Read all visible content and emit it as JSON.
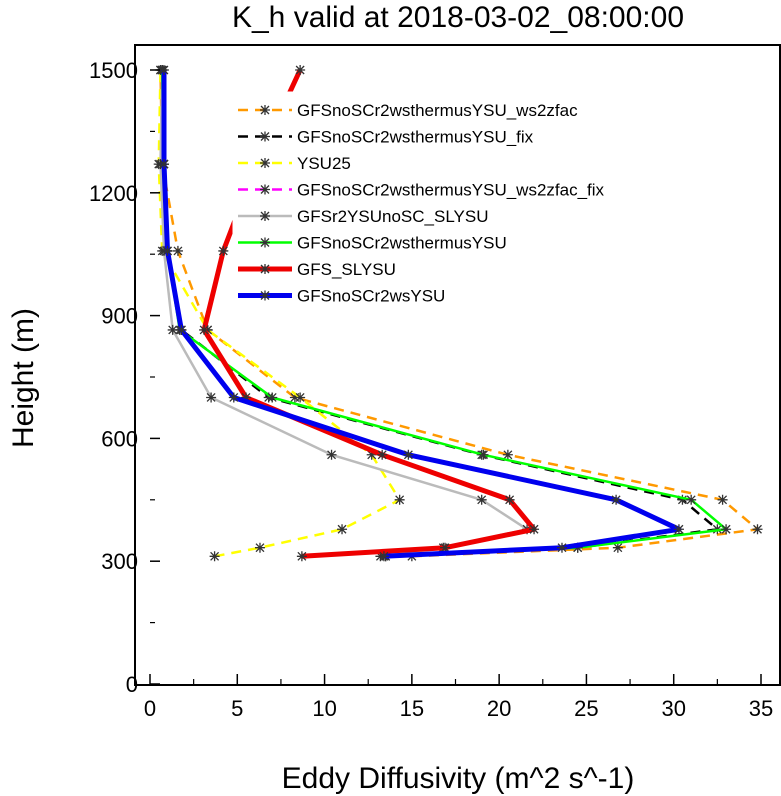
{
  "chart_data": {
    "type": "line",
    "title": "K_h valid at 2018-03-02_08:00:00",
    "xlabel": "Eddy Diffusivity (m^2 s^-1)",
    "ylabel": "Height (m)",
    "xlim": [
      0,
      35
    ],
    "ylim": [
      0,
      1500
    ],
    "xticks": [
      "0",
      "5",
      "10",
      "15",
      "20",
      "25",
      "30",
      "35"
    ],
    "yticks": [
      "0",
      "300",
      "600",
      "900",
      "1200",
      "1500"
    ],
    "grid": false,
    "legend_position": "top-right",
    "series": [
      {
        "name": "GFSnoSCr2wsthermusYSU_ws2zfac",
        "color": "#ff9900",
        "dash": "dashed",
        "width": "normal",
        "points": [
          [
            15.0,
            312
          ],
          [
            26.8,
            333
          ],
          [
            34.8,
            378
          ],
          [
            32.8,
            450
          ],
          [
            20.5,
            560
          ],
          [
            8.3,
            700
          ],
          [
            3.3,
            865
          ],
          [
            1.6,
            1058
          ],
          [
            0.7,
            1270
          ],
          [
            0.6,
            1500
          ]
        ]
      },
      {
        "name": "GFSnoSCr2wsthermusYSU_fix",
        "color": "#000000",
        "dash": "dashed",
        "width": "normal",
        "points": [
          [
            13.5,
            312
          ],
          [
            24.5,
            333
          ],
          [
            32.5,
            378
          ],
          [
            30.5,
            450
          ],
          [
            19.0,
            560
          ],
          [
            6.8,
            700
          ],
          [
            1.8,
            865
          ],
          [
            1.0,
            1058
          ],
          [
            0.8,
            1270
          ],
          [
            0.7,
            1500
          ]
        ]
      },
      {
        "name": "YSU25",
        "color": "#ffff00",
        "dash": "dashed",
        "width": "normal",
        "points": [
          [
            3.7,
            312
          ],
          [
            6.3,
            333
          ],
          [
            11.0,
            378
          ],
          [
            14.3,
            450
          ],
          [
            12.7,
            560
          ],
          [
            8.6,
            700
          ],
          [
            3.3,
            865
          ],
          [
            0.7,
            1058
          ],
          [
            0.5,
            1270
          ],
          [
            0.6,
            1500
          ]
        ]
      },
      {
        "name": "GFSnoSCr2wsthermusYSU_ws2zfac_fix",
        "color": "#ff00ff",
        "dash": "dashed",
        "width": "normal",
        "points": []
      },
      {
        "name": "GFSr2YSUnoSC_SLYSU",
        "color": "#bbbbbb",
        "dash": "solid",
        "width": "normal",
        "points": [
          [
            13.2,
            312
          ],
          [
            16.8,
            333
          ],
          [
            21.6,
            378
          ],
          [
            19.0,
            450
          ],
          [
            10.4,
            560
          ],
          [
            3.5,
            700
          ],
          [
            1.3,
            865
          ],
          [
            0.8,
            1058
          ],
          [
            0.6,
            1270
          ],
          [
            0.7,
            1500
          ]
        ]
      },
      {
        "name": "GFSnoSCr2wsthermusYSU",
        "color": "#00ff00",
        "dash": "solid",
        "width": "normal",
        "points": [
          [
            13.5,
            312
          ],
          [
            24.5,
            333
          ],
          [
            33.0,
            378
          ],
          [
            31.0,
            450
          ],
          [
            19.1,
            560
          ],
          [
            7.0,
            700
          ],
          [
            1.7,
            865
          ],
          [
            1.0,
            1058
          ],
          [
            0.8,
            1270
          ],
          [
            0.7,
            1500
          ]
        ]
      },
      {
        "name": "GFS_SLYSU",
        "color": "#ee0000",
        "dash": "solid",
        "width": "thick",
        "points": [
          [
            8.7,
            312
          ],
          [
            16.9,
            333
          ],
          [
            22.0,
            378
          ],
          [
            20.6,
            450
          ],
          [
            13.3,
            560
          ],
          [
            5.5,
            700
          ],
          [
            3.1,
            865
          ],
          [
            4.2,
            1058
          ],
          [
            6.1,
            1270
          ],
          [
            8.6,
            1500
          ]
        ]
      },
      {
        "name": "GFSnoSCr2wsYSU",
        "color": "#0000ee",
        "dash": "solid",
        "width": "thick",
        "points": [
          [
            13.4,
            312
          ],
          [
            23.6,
            333
          ],
          [
            30.3,
            378
          ],
          [
            26.7,
            450
          ],
          [
            14.8,
            560
          ],
          [
            4.8,
            700
          ],
          [
            1.8,
            865
          ],
          [
            1.0,
            1058
          ],
          [
            0.8,
            1270
          ],
          [
            0.8,
            1500
          ]
        ]
      }
    ]
  }
}
